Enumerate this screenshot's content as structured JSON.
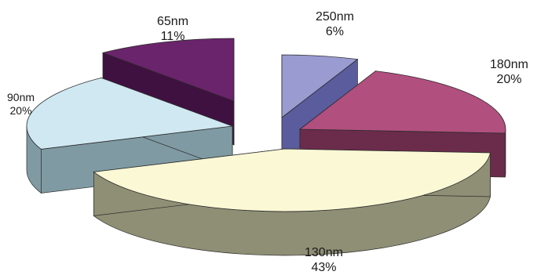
{
  "chart_data": {
    "type": "pie",
    "variant": "3d-exploded",
    "slices": [
      {
        "label": "250nm",
        "percent_label": "6%",
        "value": 6,
        "color": "#9a9bd1",
        "side_color": "#5a5c9e"
      },
      {
        "label": "180nm",
        "percent_label": "20%",
        "value": 20,
        "color": "#b14f7e",
        "side_color": "#6b2c4c"
      },
      {
        "label": "130nm",
        "percent_label": "43%",
        "value": 43,
        "color": "#fbf8d5",
        "side_color": "#8f8f76"
      },
      {
        "label": "90nm",
        "percent_label": "20%",
        "value": 20,
        "color": "#cfe8f1",
        "side_color": "#7f9aa3"
      },
      {
        "label": "65nm",
        "percent_label": "11%",
        "value": 11,
        "color": "#6a246b",
        "side_color": "#3f1140"
      }
    ]
  }
}
